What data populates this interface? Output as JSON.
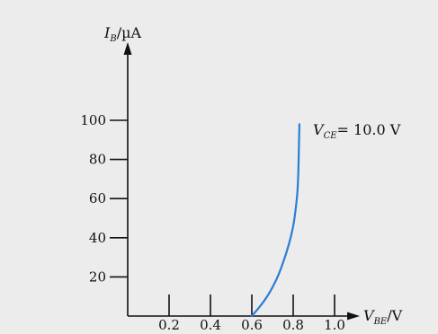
{
  "chart_data": {
    "type": "line",
    "title": "",
    "xlabel": {
      "main": "V",
      "sub": "BE",
      "unit": "/V"
    },
    "ylabel": {
      "main": "I",
      "sub": "B",
      "unit": "/µA"
    },
    "xlim": [
      0,
      1.0
    ],
    "ylim": [
      0,
      100
    ],
    "x_ticks": [
      0.2,
      0.4,
      0.6,
      0.8,
      1.0
    ],
    "x_tick_labels": [
      "0.2",
      "0.4",
      "0.6",
      "0.8",
      "1.0"
    ],
    "y_ticks": [
      20,
      40,
      60,
      80,
      100
    ],
    "y_tick_labels": [
      "20",
      "40",
      "60",
      "80",
      "100"
    ],
    "grid": false,
    "series": [
      {
        "color": "#2a7fd4",
        "x": [
          0.6,
          0.64,
          0.68,
          0.72,
          0.75,
          0.78,
          0.8,
          0.81,
          0.82,
          0.825,
          0.83
        ],
        "y": [
          0,
          5,
          11,
          19,
          27,
          37,
          46,
          53,
          63,
          75,
          98
        ]
      }
    ],
    "annotations": [
      {
        "main": "V",
        "sub": "CE",
        "text": "= 10.0 V",
        "x": 0.83,
        "y": 100
      }
    ]
  }
}
